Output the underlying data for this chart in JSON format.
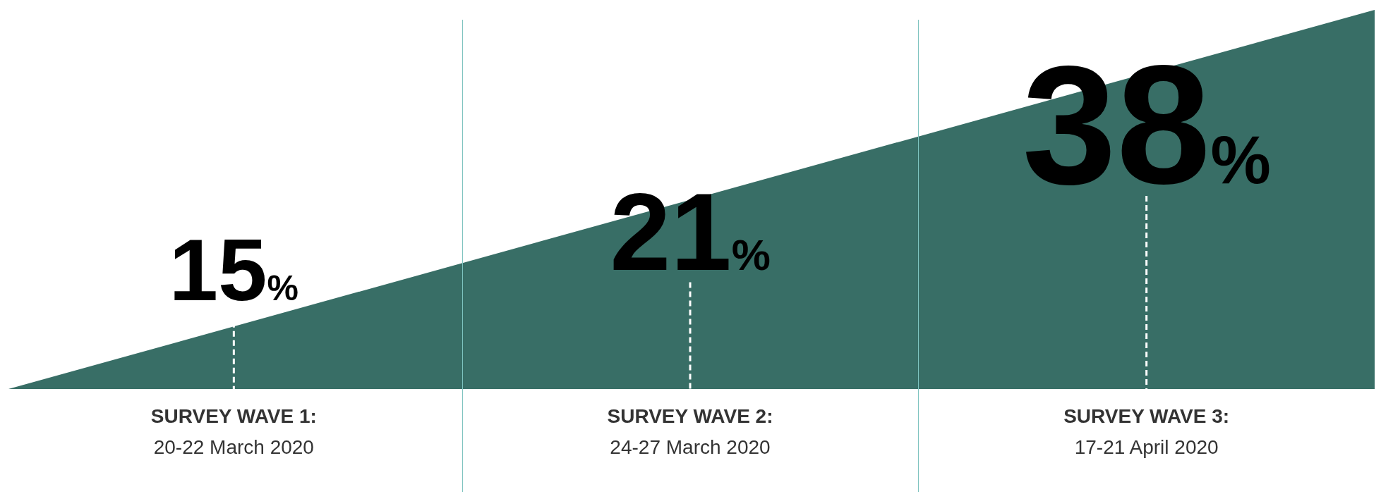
{
  "chart_data": {
    "type": "other",
    "categories": [
      "SURVEY WAVE 1:\n20-22 March 2020",
      "SURVEY WAVE 2:\n24-27 March 2020",
      "SURVEY WAVE 3:\n17-21 April 2020"
    ],
    "values": [
      15,
      21,
      38
    ],
    "value_labels": [
      "15%",
      "21%",
      "38%"
    ],
    "color": "#386e66"
  }
}
